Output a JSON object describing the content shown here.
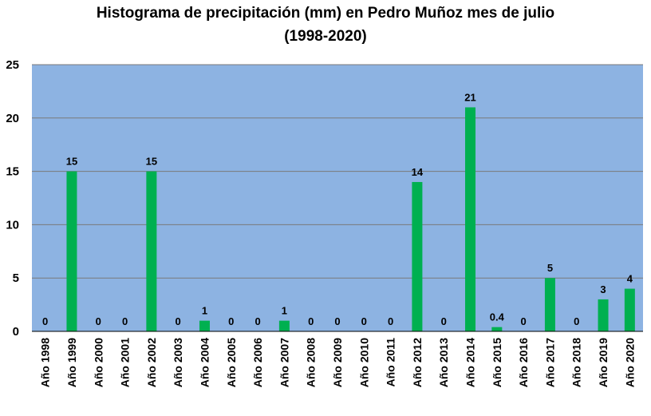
{
  "chart_data": {
    "type": "bar",
    "title_line1": "Histograma de precipitación (mm) en Pedro Muñoz mes de julio",
    "title_line2": "(1998-2020)",
    "xlabel": "",
    "ylabel": "",
    "ylim": [
      0,
      25
    ],
    "yticks": [
      0,
      5,
      10,
      15,
      20,
      25
    ],
    "grid": true,
    "legend": "none",
    "colors": {
      "plot_background": "#8db3e2",
      "bar": "#00b050",
      "grid": "#7a7a7a"
    },
    "categories": [
      "Año 1998",
      "Año 1999",
      "Año 2000",
      "Año 2001",
      "Año 2002",
      "Año 2003",
      "Año 2004",
      "Año 2005",
      "Año 2006",
      "Año 2007",
      "Año 2008",
      "Año 2009",
      "Año 2010",
      "Año 2011",
      "Año 2012",
      "Año 2013",
      "Año 2014",
      "Año 2015",
      "Año 2016",
      "Año 2017",
      "Año 2018",
      "Año 2019",
      "Año 2020"
    ],
    "values": [
      0,
      15,
      0,
      0,
      15,
      0,
      1,
      0,
      0,
      1,
      0,
      0,
      0,
      0,
      14,
      0,
      21,
      0.4,
      0,
      5,
      0,
      3,
      4
    ],
    "data_labels": [
      "0",
      "15",
      "0",
      "0",
      "15",
      "0",
      "1",
      "0",
      "0",
      "1",
      "0",
      "0",
      "0",
      "0",
      "14",
      "0",
      "21",
      "0.4",
      "0",
      "5",
      "0",
      "3",
      "4"
    ]
  }
}
